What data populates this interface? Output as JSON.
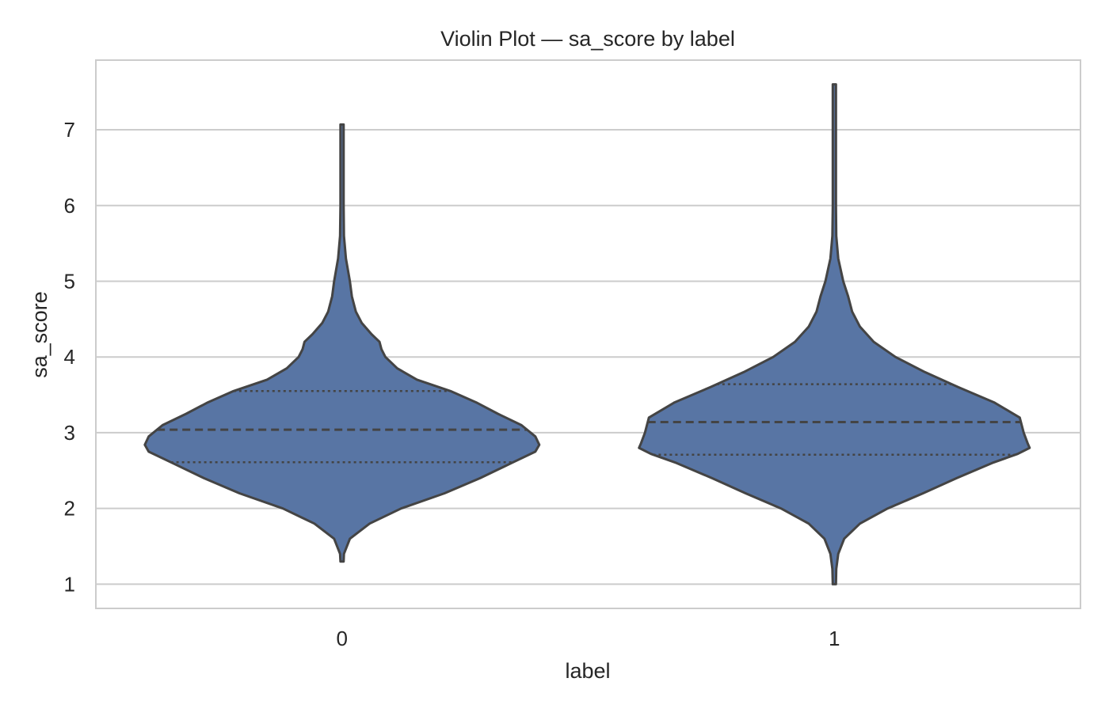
{
  "chart_data": {
    "type": "violin",
    "title": "Violin Plot — sa_score by label",
    "xlabel": "label",
    "ylabel": "sa_score",
    "categories": [
      "0",
      "1"
    ],
    "yticks": [
      1,
      2,
      3,
      4,
      5,
      6,
      7
    ],
    "ylim": [
      0.68,
      7.92
    ],
    "grid": true,
    "colors": {
      "fill": "#5875a4",
      "outline": "#444444",
      "grid": "#cccccc",
      "frame": "#cccccc"
    },
    "series": [
      {
        "category": "0",
        "min": 1.3,
        "max": 7.07,
        "quartiles": {
          "q1": 2.61,
          "median": 3.04,
          "q3": 3.55
        },
        "density_profile": [
          [
            1.3,
            0.0
          ],
          [
            1.4,
            0.01
          ],
          [
            1.6,
            0.04
          ],
          [
            1.8,
            0.14
          ],
          [
            2.0,
            0.3
          ],
          [
            2.2,
            0.52
          ],
          [
            2.4,
            0.7
          ],
          [
            2.6,
            0.86
          ],
          [
            2.75,
            0.98
          ],
          [
            2.84,
            1.0
          ],
          [
            2.95,
            0.98
          ],
          [
            3.1,
            0.91
          ],
          [
            3.25,
            0.79
          ],
          [
            3.4,
            0.68
          ],
          [
            3.55,
            0.55
          ],
          [
            3.7,
            0.38
          ],
          [
            3.85,
            0.28
          ],
          [
            4.0,
            0.22
          ],
          [
            4.1,
            0.2
          ],
          [
            4.2,
            0.19
          ],
          [
            4.3,
            0.15
          ],
          [
            4.45,
            0.1
          ],
          [
            4.6,
            0.07
          ],
          [
            4.8,
            0.05
          ],
          [
            5.0,
            0.04
          ],
          [
            5.3,
            0.02
          ],
          [
            5.6,
            0.01
          ],
          [
            6.0,
            0.007
          ],
          [
            6.5,
            0.004
          ],
          [
            7.07,
            0.0
          ]
        ]
      },
      {
        "category": "1",
        "min": 1.0,
        "max": 7.6,
        "quartiles": {
          "q1": 2.71,
          "median": 3.14,
          "q3": 3.64
        },
        "density_profile": [
          [
            1.0,
            0.0
          ],
          [
            1.2,
            0.01
          ],
          [
            1.4,
            0.02
          ],
          [
            1.6,
            0.05
          ],
          [
            1.8,
            0.13
          ],
          [
            2.0,
            0.27
          ],
          [
            2.2,
            0.45
          ],
          [
            2.4,
            0.62
          ],
          [
            2.6,
            0.8
          ],
          [
            2.72,
            0.93
          ],
          [
            2.8,
            0.99
          ],
          [
            2.86,
            0.98
          ],
          [
            3.0,
            0.96
          ],
          [
            3.2,
            0.94
          ],
          [
            3.4,
            0.81
          ],
          [
            3.6,
            0.63
          ],
          [
            3.8,
            0.46
          ],
          [
            4.0,
            0.31
          ],
          [
            4.2,
            0.2
          ],
          [
            4.4,
            0.13
          ],
          [
            4.6,
            0.09
          ],
          [
            4.8,
            0.07
          ],
          [
            5.0,
            0.045
          ],
          [
            5.3,
            0.02
          ],
          [
            5.6,
            0.01
          ],
          [
            6.0,
            0.006
          ],
          [
            6.5,
            0.004
          ],
          [
            7.0,
            0.003
          ],
          [
            7.6,
            0.0
          ]
        ]
      }
    ]
  }
}
